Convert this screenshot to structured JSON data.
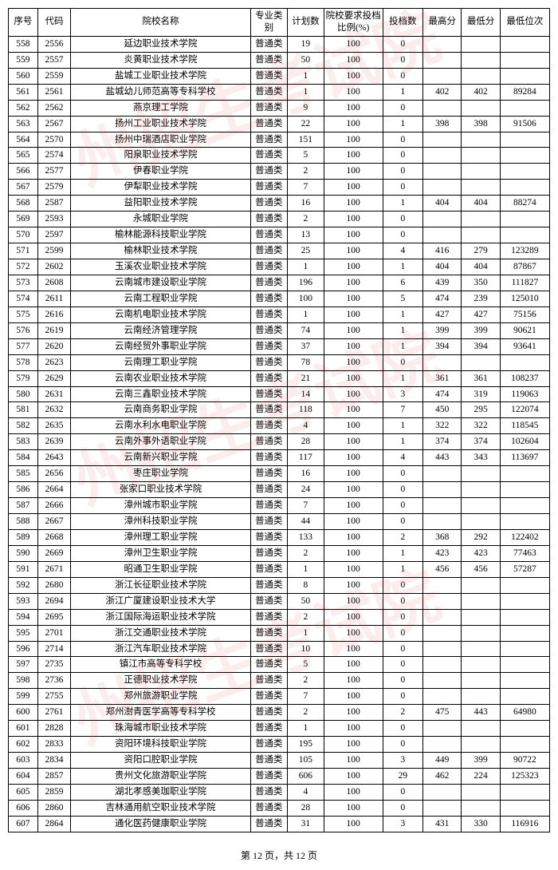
{
  "headers": {
    "seq": "序号",
    "code": "代码",
    "name": "院校名称",
    "type": "专业类别",
    "plan": "计划数",
    "ratio": "院校要求投档比例(%)",
    "filed": "投档数",
    "max": "最高分",
    "min": "最低分",
    "rank": "最低位次"
  },
  "footer": "第 12 页，共 12 页",
  "watermarks": [
    "州招生考试院",
    "州招生考试院",
    "州招生考试院"
  ],
  "rows": [
    {
      "seq": "558",
      "code": "2556",
      "name": "延边职业技术学院",
      "type": "普通类",
      "plan": "19",
      "ratio": "100",
      "filed": "0",
      "max": "",
      "min": "",
      "rank": ""
    },
    {
      "seq": "559",
      "code": "2557",
      "name": "炎黄职业技术学院",
      "type": "普通类",
      "plan": "50",
      "ratio": "100",
      "filed": "0",
      "max": "",
      "min": "",
      "rank": ""
    },
    {
      "seq": "560",
      "code": "2559",
      "name": "盐城工业职业技术学院",
      "type": "普通类",
      "plan": "1",
      "ratio": "100",
      "filed": "0",
      "max": "",
      "min": "",
      "rank": ""
    },
    {
      "seq": "561",
      "code": "2561",
      "name": "盐城幼儿师范高等专科学校",
      "type": "普通类",
      "plan": "1",
      "ratio": "100",
      "filed": "1",
      "max": "402",
      "min": "402",
      "rank": "89284"
    },
    {
      "seq": "562",
      "code": "2562",
      "name": "燕京理工学院",
      "type": "普通类",
      "plan": "9",
      "ratio": "100",
      "filed": "0",
      "max": "",
      "min": "",
      "rank": ""
    },
    {
      "seq": "563",
      "code": "2567",
      "name": "扬州工业职业技术学院",
      "type": "普通类",
      "plan": "22",
      "ratio": "100",
      "filed": "1",
      "max": "398",
      "min": "398",
      "rank": "91506"
    },
    {
      "seq": "564",
      "code": "2570",
      "name": "扬州中瑞酒店职业学院",
      "type": "普通类",
      "plan": "151",
      "ratio": "100",
      "filed": "0",
      "max": "",
      "min": "",
      "rank": ""
    },
    {
      "seq": "565",
      "code": "2574",
      "name": "阳泉职业技术学院",
      "type": "普通类",
      "plan": "5",
      "ratio": "100",
      "filed": "0",
      "max": "",
      "min": "",
      "rank": ""
    },
    {
      "seq": "566",
      "code": "2577",
      "name": "伊春职业学院",
      "type": "普通类",
      "plan": "2",
      "ratio": "100",
      "filed": "0",
      "max": "",
      "min": "",
      "rank": ""
    },
    {
      "seq": "567",
      "code": "2579",
      "name": "伊犁职业技术学院",
      "type": "普通类",
      "plan": "7",
      "ratio": "100",
      "filed": "0",
      "max": "",
      "min": "",
      "rank": ""
    },
    {
      "seq": "568",
      "code": "2587",
      "name": "益阳职业技术学院",
      "type": "普通类",
      "plan": "16",
      "ratio": "100",
      "filed": "1",
      "max": "404",
      "min": "404",
      "rank": "88274"
    },
    {
      "seq": "569",
      "code": "2593",
      "name": "永城职业学院",
      "type": "普通类",
      "plan": "2",
      "ratio": "100",
      "filed": "0",
      "max": "",
      "min": "",
      "rank": ""
    },
    {
      "seq": "570",
      "code": "2597",
      "name": "榆林能源科技职业学院",
      "type": "普通类",
      "plan": "13",
      "ratio": "100",
      "filed": "0",
      "max": "",
      "min": "",
      "rank": ""
    },
    {
      "seq": "571",
      "code": "2599",
      "name": "榆林职业技术学院",
      "type": "普通类",
      "plan": "25",
      "ratio": "100",
      "filed": "4",
      "max": "416",
      "min": "279",
      "rank": "123289"
    },
    {
      "seq": "572",
      "code": "2602",
      "name": "玉溪农业职业技术学院",
      "type": "普通类",
      "plan": "1",
      "ratio": "100",
      "filed": "1",
      "max": "404",
      "min": "404",
      "rank": "87867"
    },
    {
      "seq": "573",
      "code": "2608",
      "name": "云南城市建设职业学院",
      "type": "普通类",
      "plan": "196",
      "ratio": "100",
      "filed": "6",
      "max": "439",
      "min": "350",
      "rank": "111827"
    },
    {
      "seq": "574",
      "code": "2611",
      "name": "云南工程职业学院",
      "type": "普通类",
      "plan": "100",
      "ratio": "100",
      "filed": "5",
      "max": "474",
      "min": "239",
      "rank": "125010"
    },
    {
      "seq": "575",
      "code": "2616",
      "name": "云南机电职业技术学院",
      "type": "普通类",
      "plan": "1",
      "ratio": "100",
      "filed": "1",
      "max": "427",
      "min": "427",
      "rank": "75156"
    },
    {
      "seq": "576",
      "code": "2619",
      "name": "云南经济管理学院",
      "type": "普通类",
      "plan": "74",
      "ratio": "100",
      "filed": "1",
      "max": "399",
      "min": "399",
      "rank": "90621"
    },
    {
      "seq": "577",
      "code": "2620",
      "name": "云南经贸外事职业学院",
      "type": "普通类",
      "plan": "37",
      "ratio": "100",
      "filed": "1",
      "max": "394",
      "min": "394",
      "rank": "93641"
    },
    {
      "seq": "578",
      "code": "2623",
      "name": "云南理工职业学院",
      "type": "普通类",
      "plan": "78",
      "ratio": "100",
      "filed": "0",
      "max": "",
      "min": "",
      "rank": ""
    },
    {
      "seq": "579",
      "code": "2629",
      "name": "云南农业职业技术学院",
      "type": "普通类",
      "plan": "21",
      "ratio": "100",
      "filed": "1",
      "max": "361",
      "min": "361",
      "rank": "108237"
    },
    {
      "seq": "580",
      "code": "2631",
      "name": "云南三鑫职业技术学院",
      "type": "普通类",
      "plan": "14",
      "ratio": "100",
      "filed": "3",
      "max": "474",
      "min": "319",
      "rank": "119063"
    },
    {
      "seq": "581",
      "code": "2632",
      "name": "云南商务职业学院",
      "type": "普通类",
      "plan": "118",
      "ratio": "100",
      "filed": "7",
      "max": "450",
      "min": "295",
      "rank": "122074"
    },
    {
      "seq": "582",
      "code": "2635",
      "name": "云南水利水电职业学院",
      "type": "普通类",
      "plan": "4",
      "ratio": "100",
      "filed": "1",
      "max": "322",
      "min": "322",
      "rank": "118545"
    },
    {
      "seq": "583",
      "code": "2639",
      "name": "云南外事外语职业学院",
      "type": "普通类",
      "plan": "28",
      "ratio": "100",
      "filed": "1",
      "max": "374",
      "min": "374",
      "rank": "102604"
    },
    {
      "seq": "584",
      "code": "2643",
      "name": "云南新兴职业学院",
      "type": "普通类",
      "plan": "117",
      "ratio": "100",
      "filed": "4",
      "max": "443",
      "min": "343",
      "rank": "113697"
    },
    {
      "seq": "585",
      "code": "2656",
      "name": "枣庄职业学院",
      "type": "普通类",
      "plan": "16",
      "ratio": "100",
      "filed": "0",
      "max": "",
      "min": "",
      "rank": ""
    },
    {
      "seq": "586",
      "code": "2664",
      "name": "张家口职业技术学院",
      "type": "普通类",
      "plan": "24",
      "ratio": "100",
      "filed": "0",
      "max": "",
      "min": "",
      "rank": ""
    },
    {
      "seq": "587",
      "code": "2666",
      "name": "漳州城市职业学院",
      "type": "普通类",
      "plan": "7",
      "ratio": "100",
      "filed": "0",
      "max": "",
      "min": "",
      "rank": ""
    },
    {
      "seq": "588",
      "code": "2667",
      "name": "漳州科技职业学院",
      "type": "普通类",
      "plan": "44",
      "ratio": "100",
      "filed": "0",
      "max": "",
      "min": "",
      "rank": ""
    },
    {
      "seq": "589",
      "code": "2668",
      "name": "漳州理工职业学院",
      "type": "普通类",
      "plan": "133",
      "ratio": "100",
      "filed": "2",
      "max": "368",
      "min": "292",
      "rank": "122402"
    },
    {
      "seq": "590",
      "code": "2669",
      "name": "漳州卫生职业学院",
      "type": "普通类",
      "plan": "2",
      "ratio": "100",
      "filed": "1",
      "max": "423",
      "min": "423",
      "rank": "77463"
    },
    {
      "seq": "591",
      "code": "2671",
      "name": "昭通卫生职业学院",
      "type": "普通类",
      "plan": "1",
      "ratio": "100",
      "filed": "1",
      "max": "456",
      "min": "456",
      "rank": "57287"
    },
    {
      "seq": "592",
      "code": "2680",
      "name": "浙江长征职业技术学院",
      "type": "普通类",
      "plan": "8",
      "ratio": "100",
      "filed": "0",
      "max": "",
      "min": "",
      "rank": ""
    },
    {
      "seq": "593",
      "code": "2694",
      "name": "浙江广厦建设职业技术大学",
      "type": "普通类",
      "plan": "50",
      "ratio": "100",
      "filed": "0",
      "max": "",
      "min": "",
      "rank": ""
    },
    {
      "seq": "594",
      "code": "2695",
      "name": "浙江国际海运职业技术学院",
      "type": "普通类",
      "plan": "2",
      "ratio": "100",
      "filed": "0",
      "max": "",
      "min": "",
      "rank": ""
    },
    {
      "seq": "595",
      "code": "2701",
      "name": "浙江交通职业技术学院",
      "type": "普通类",
      "plan": "1",
      "ratio": "100",
      "filed": "0",
      "max": "",
      "min": "",
      "rank": ""
    },
    {
      "seq": "596",
      "code": "2714",
      "name": "浙江汽车职业技术学院",
      "type": "普通类",
      "plan": "10",
      "ratio": "100",
      "filed": "0",
      "max": "",
      "min": "",
      "rank": ""
    },
    {
      "seq": "597",
      "code": "2735",
      "name": "镇江市高等专科学校",
      "type": "普通类",
      "plan": "5",
      "ratio": "100",
      "filed": "0",
      "max": "",
      "min": "",
      "rank": ""
    },
    {
      "seq": "598",
      "code": "2736",
      "name": "正德职业技术学院",
      "type": "普通类",
      "plan": "2",
      "ratio": "100",
      "filed": "0",
      "max": "",
      "min": "",
      "rank": ""
    },
    {
      "seq": "599",
      "code": "2755",
      "name": "郑州旅游职业学院",
      "type": "普通类",
      "plan": "7",
      "ratio": "100",
      "filed": "0",
      "max": "",
      "min": "",
      "rank": ""
    },
    {
      "seq": "600",
      "code": "2761",
      "name": "郑州澍青医学高等专科学校",
      "type": "普通类",
      "plan": "2",
      "ratio": "100",
      "filed": "2",
      "max": "475",
      "min": "443",
      "rank": "64980"
    },
    {
      "seq": "601",
      "code": "2828",
      "name": "珠海城市职业技术学院",
      "type": "普通类",
      "plan": "1",
      "ratio": "100",
      "filed": "0",
      "max": "",
      "min": "",
      "rank": ""
    },
    {
      "seq": "602",
      "code": "2833",
      "name": "资阳环境科技职业学院",
      "type": "普通类",
      "plan": "195",
      "ratio": "100",
      "filed": "0",
      "max": "",
      "min": "",
      "rank": ""
    },
    {
      "seq": "603",
      "code": "2834",
      "name": "资阳口腔职业学院",
      "type": "普通类",
      "plan": "105",
      "ratio": "100",
      "filed": "3",
      "max": "449",
      "min": "399",
      "rank": "90722"
    },
    {
      "seq": "604",
      "code": "2857",
      "name": "贵州文化旅游职业学院",
      "type": "普通类",
      "plan": "606",
      "ratio": "100",
      "filed": "29",
      "max": "462",
      "min": "224",
      "rank": "125323"
    },
    {
      "seq": "605",
      "code": "2859",
      "name": "湖北孝感美珈职业学院",
      "type": "普通类",
      "plan": "4",
      "ratio": "100",
      "filed": "0",
      "max": "",
      "min": "",
      "rank": ""
    },
    {
      "seq": "606",
      "code": "2860",
      "name": "吉林通用航空职业技术学院",
      "type": "普通类",
      "plan": "28",
      "ratio": "100",
      "filed": "0",
      "max": "",
      "min": "",
      "rank": ""
    },
    {
      "seq": "607",
      "code": "2864",
      "name": "通化医药健康职业学院",
      "type": "普通类",
      "plan": "31",
      "ratio": "100",
      "filed": "3",
      "max": "431",
      "min": "330",
      "rank": "116916"
    }
  ]
}
